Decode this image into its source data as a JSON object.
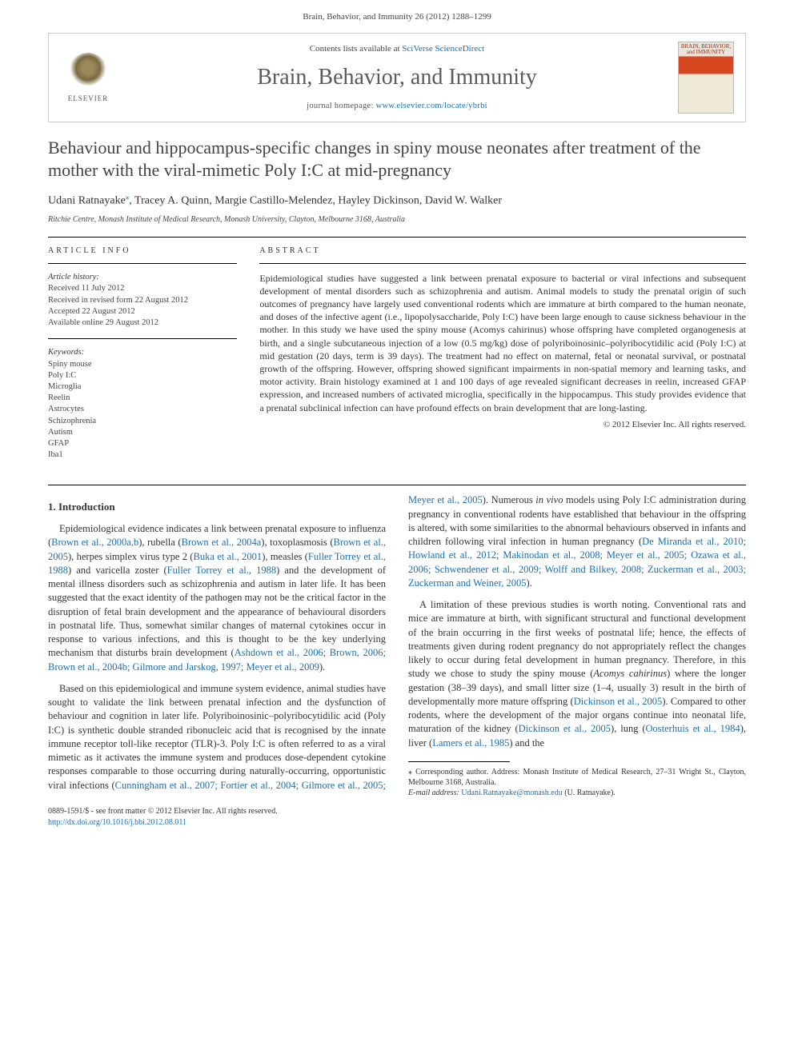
{
  "header": {
    "citation": "Brain, Behavior, and Immunity 26 (2012) 1288–1299"
  },
  "meta": {
    "contents_prefix": "Contents lists available at ",
    "contents_link": "SciVerse ScienceDirect",
    "journal": "Brain, Behavior, and Immunity",
    "homepage_prefix": "journal homepage: ",
    "homepage_url": "www.elsevier.com/locate/ybrbi",
    "publisher_logo_text": "ELSEVIER",
    "cover_title": "BRAIN, BEHAVIOR, and IMMUNITY"
  },
  "article": {
    "title": "Behaviour and hippocampus-specific changes in spiny mouse neonates after treatment of the mother with the viral-mimetic Poly I:C at mid-pregnancy",
    "authors": "Udani Ratnayake",
    "authors_rest": ", Tracey A. Quinn, Margie Castillo-Melendez, Hayley Dickinson, David W. Walker",
    "corr_mark": "⁎",
    "affiliation": "Ritchie Centre, Monash Institute of Medical Research, Monash University, Clayton, Melbourne 3168, Australia"
  },
  "info": {
    "head": "ARTICLE INFO",
    "history_label": "Article history:",
    "history": [
      "Received 11 July 2012",
      "Received in revised form 22 August 2012",
      "Accepted 22 August 2012",
      "Available online 29 August 2012"
    ],
    "kw_label": "Keywords:",
    "keywords": [
      "Spiny mouse",
      "Poly I:C",
      "Microglia",
      "Reelin",
      "Astrocytes",
      "Schizophrenia",
      "Autism",
      "GFAP",
      "Iba1"
    ]
  },
  "abstract": {
    "head": "ABSTRACT",
    "text": "Epidemiological studies have suggested a link between prenatal exposure to bacterial or viral infections and subsequent development of mental disorders such as schizophrenia and autism. Animal models to study the prenatal origin of such outcomes of pregnancy have largely used conventional rodents which are immature at birth compared to the human neonate, and doses of the infective agent (i.e., lipopolysaccharide, Poly I:C) have been large enough to cause sickness behaviour in the mother. In this study we have used the spiny mouse (Acomys cahirinus) whose offspring have completed organogenesis at birth, and a single subcutaneous injection of a low (0.5 mg/kg) dose of polyriboinosinic–polyribocytidilic acid (Poly I:C) at mid gestation (20 days, term is 39 days). The treatment had no effect on maternal, fetal or neonatal survival, or postnatal growth of the offspring. However, offspring showed significant impairments in non-spatial memory and learning tasks, and motor activity. Brain histology examined at 1 and 100 days of age revealed significant decreases in reelin, increased GFAP expression, and increased numbers of activated microglia, specifically in the hippocampus. This study provides evidence that a prenatal subclinical infection can have profound effects on brain development that are long-lasting.",
    "copyright": "© 2012 Elsevier Inc. All rights reserved."
  },
  "body": {
    "h1": "1. Introduction",
    "p1_a": "Epidemiological evidence indicates a link between prenatal exposure to influenza (",
    "c1": "Brown et al., 2000a,b",
    "p1_b": "), rubella (",
    "c2": "Brown et al., 2004a",
    "p1_c": "), toxoplasmosis (",
    "c3": "Brown et al., 2005",
    "p1_d": "), herpes simplex virus type 2 (",
    "c4": "Buka et al., 2001",
    "p1_e": "), measles (",
    "c5": "Fuller Torrey et al., 1988",
    "p1_f": ") and varicella zoster (",
    "c6": "Fuller Torrey et al., 1988",
    "p1_g": ") and the development of mental illness disorders such as schizophrenia and autism in later life. It has been suggested that the exact identity of the pathogen may not be the critical factor in the disruption of fetal brain development and the appearance of behavioural disorders in postnatal life. Thus, somewhat similar changes of maternal cytokines occur in response to various infections, and this is thought to be the key underlying mechanism that disturbs brain development (",
    "c7": "Ashdown et al., 2006; Brown, 2006; Brown et al., 2004b; Gilmore and Jarskog, 1997; Meyer et al., 2009",
    "p1_h": ").",
    "p2_a": "Based on this epidemiological and immune system evidence, animal studies have sought to validate the link between prenatal infection and the dysfunction of behaviour and cognition in later life. Polyriboinosinic–polyribocytidilic acid (Poly I:C) is synthetic double stranded ribonucleic acid that is recognised by the innate immune receptor toll-like receptor (TLR)-3. Poly I:C is often ",
    "p2_b": "referred to as a viral mimetic as it activates the immune system and produces dose-dependent cytokine responses comparable to those occurring during naturally-occurring, opportunistic viral infections (",
    "c8": "Cunningham et al., 2007; Fortier et al., 2004; Gilmore et al., 2005; Meyer et al., 2005",
    "p2_c": "). Numerous ",
    "ital1": "in vivo",
    "p2_d": " models using Poly I:C administration during pregnancy in conventional rodents have established that behaviour in the offspring is altered, with some similarities to the abnormal behaviours observed in infants and children following viral infection in human pregnancy (",
    "c9": "De Miranda et al., 2010; Howland et al., 2012; Makinodan et al., 2008; Meyer et al., 2005; Ozawa et al., 2006; Schwendener et al., 2009; Wolff and Bilkey, 2008; Zuckerman et al., 2003; Zuckerman and Weiner, 2005",
    "p2_e": ").",
    "p3_a": "A limitation of these previous studies is worth noting. Conventional rats and mice are immature at birth, with significant structural and functional development of the brain occurring in the first weeks of postnatal life; hence, the effects of treatments given during rodent pregnancy do not appropriately reflect the changes likely to occur during fetal development in human pregnancy. Therefore, in this study we chose to study the spiny mouse (",
    "ital2": "Acomys cahirinus",
    "p3_b": ") where the longer gestation (38–39 days), and small litter size (1–4, usually 3) result in the birth of developmentally more mature offspring (",
    "c10": "Dickinson et al., 2005",
    "p3_c": "). Compared to other rodents, where the development of the major organs continue into neonatal life, maturation of the kidney (",
    "c11": "Dickinson et al., 2005",
    "p3_d": "), lung (",
    "c12": "Oosterhuis et al., 1984",
    "p3_e": "), liver (",
    "c13": "Lamers et al., 1985",
    "p3_f": ") and the"
  },
  "footnotes": {
    "corr": "⁎ Corresponding author. Address: Monash Institute of Medical Research, 27–31 Wright St., Clayton, Melbourne 3168, Australia.",
    "email_label": "E-mail address: ",
    "email": "Udani.Ratnayake@monash.edu",
    "email_suffix": " (U. Ratnayake)."
  },
  "bottom": {
    "line1": "0889-1591/$ - see front matter © 2012 Elsevier Inc. All rights reserved.",
    "doi": "http://dx.doi.org/10.1016/j.bbi.2012.08.011"
  },
  "colors": {
    "link": "#1a6fb3",
    "text": "#333333",
    "rule": "#000000"
  }
}
